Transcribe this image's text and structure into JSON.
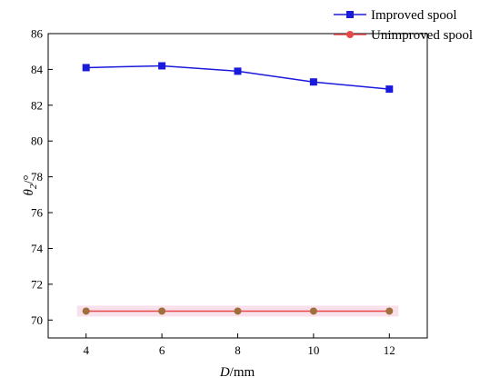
{
  "chart_data": {
    "type": "line",
    "x": [
      4,
      6,
      8,
      10,
      12
    ],
    "xlim": [
      3,
      13
    ],
    "ylim": [
      69,
      86
    ],
    "xticks": [
      4,
      6,
      8,
      10,
      12
    ],
    "yticks": [
      70,
      72,
      74,
      76,
      78,
      80,
      82,
      84,
      86
    ],
    "xlabel": {
      "var": "D",
      "unit": "/mm"
    },
    "ylabel": {
      "var": "θ",
      "sub": "2",
      "unit": "/°"
    },
    "grid": false,
    "legend_position": "top-right-outside",
    "series": [
      {
        "name": "Improved spool",
        "values": [
          84.1,
          84.2,
          83.9,
          83.3,
          82.9
        ],
        "color": "#1a1adc",
        "marker": "square"
      },
      {
        "name": "Unimproved spool",
        "values": [
          70.5,
          70.5,
          70.5,
          70.5,
          70.5
        ],
        "color": "#e8484a",
        "marker": "circle",
        "marker_color": "#a0703c",
        "band_color": "#f7d9e6"
      }
    ]
  }
}
